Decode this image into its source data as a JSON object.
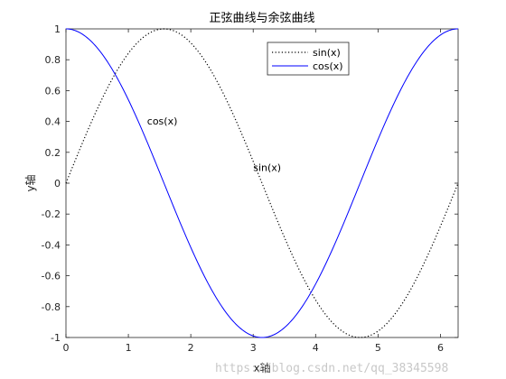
{
  "chart_data": {
    "type": "line",
    "title": "正弦曲线与余弦曲线",
    "xlabel": "x轴",
    "ylabel": "y轴",
    "xlim": [
      0,
      6.283185307
    ],
    "ylim": [
      -1,
      1
    ],
    "xticks": [
      0,
      1,
      2,
      3,
      4,
      5,
      6
    ],
    "xtick_labels": [
      "0",
      "1",
      "2",
      "3",
      "4",
      "5",
      "6"
    ],
    "yticks": [
      1,
      0.8,
      0.6,
      0.4,
      0.2,
      0,
      -0.2,
      -0.4,
      -0.6,
      -0.8,
      -1
    ],
    "ytick_labels": [
      "1",
      "0.8",
      "0.6",
      "0.4",
      "0.2",
      "0",
      "-0.2",
      "-0.4",
      "-0.6",
      "-0.8",
      "-1"
    ],
    "grid": false,
    "legend_position": "top-right",
    "series": [
      {
        "name": "sin(x)",
        "color": "#000000",
        "style": "dotted",
        "x": [
          0,
          0.4,
          0.8,
          1.2,
          1.6,
          2.0,
          2.4,
          2.8,
          3.2,
          3.6,
          4.0,
          4.4,
          4.8,
          5.2,
          5.6,
          6.0,
          6.283
        ],
        "y": [
          0,
          0.389,
          0.717,
          0.932,
          1.0,
          0.909,
          0.675,
          0.335,
          -0.058,
          -0.443,
          -0.757,
          -0.952,
          -0.996,
          -0.883,
          -0.631,
          -0.279,
          0
        ]
      },
      {
        "name": "cos(x)",
        "color": "#0000ff",
        "style": "solid",
        "x": [
          0,
          0.4,
          0.8,
          1.2,
          1.6,
          2.0,
          2.4,
          2.8,
          3.2,
          3.6,
          4.0,
          4.4,
          4.8,
          5.2,
          5.6,
          6.0,
          6.283
        ],
        "y": [
          1,
          0.921,
          0.697,
          0.362,
          -0.029,
          -0.416,
          -0.737,
          -0.942,
          -0.998,
          -0.897,
          -0.654,
          -0.307,
          0.087,
          0.469,
          0.776,
          0.96,
          1
        ]
      }
    ],
    "annotations": [
      {
        "text": "cos(x)",
        "x": 1.3,
        "y": 0.38
      },
      {
        "text": "sin(x)",
        "x": 3.0,
        "y": 0.08
      }
    ]
  },
  "watermark": "https://blog.csdn.net/qq_38345598"
}
